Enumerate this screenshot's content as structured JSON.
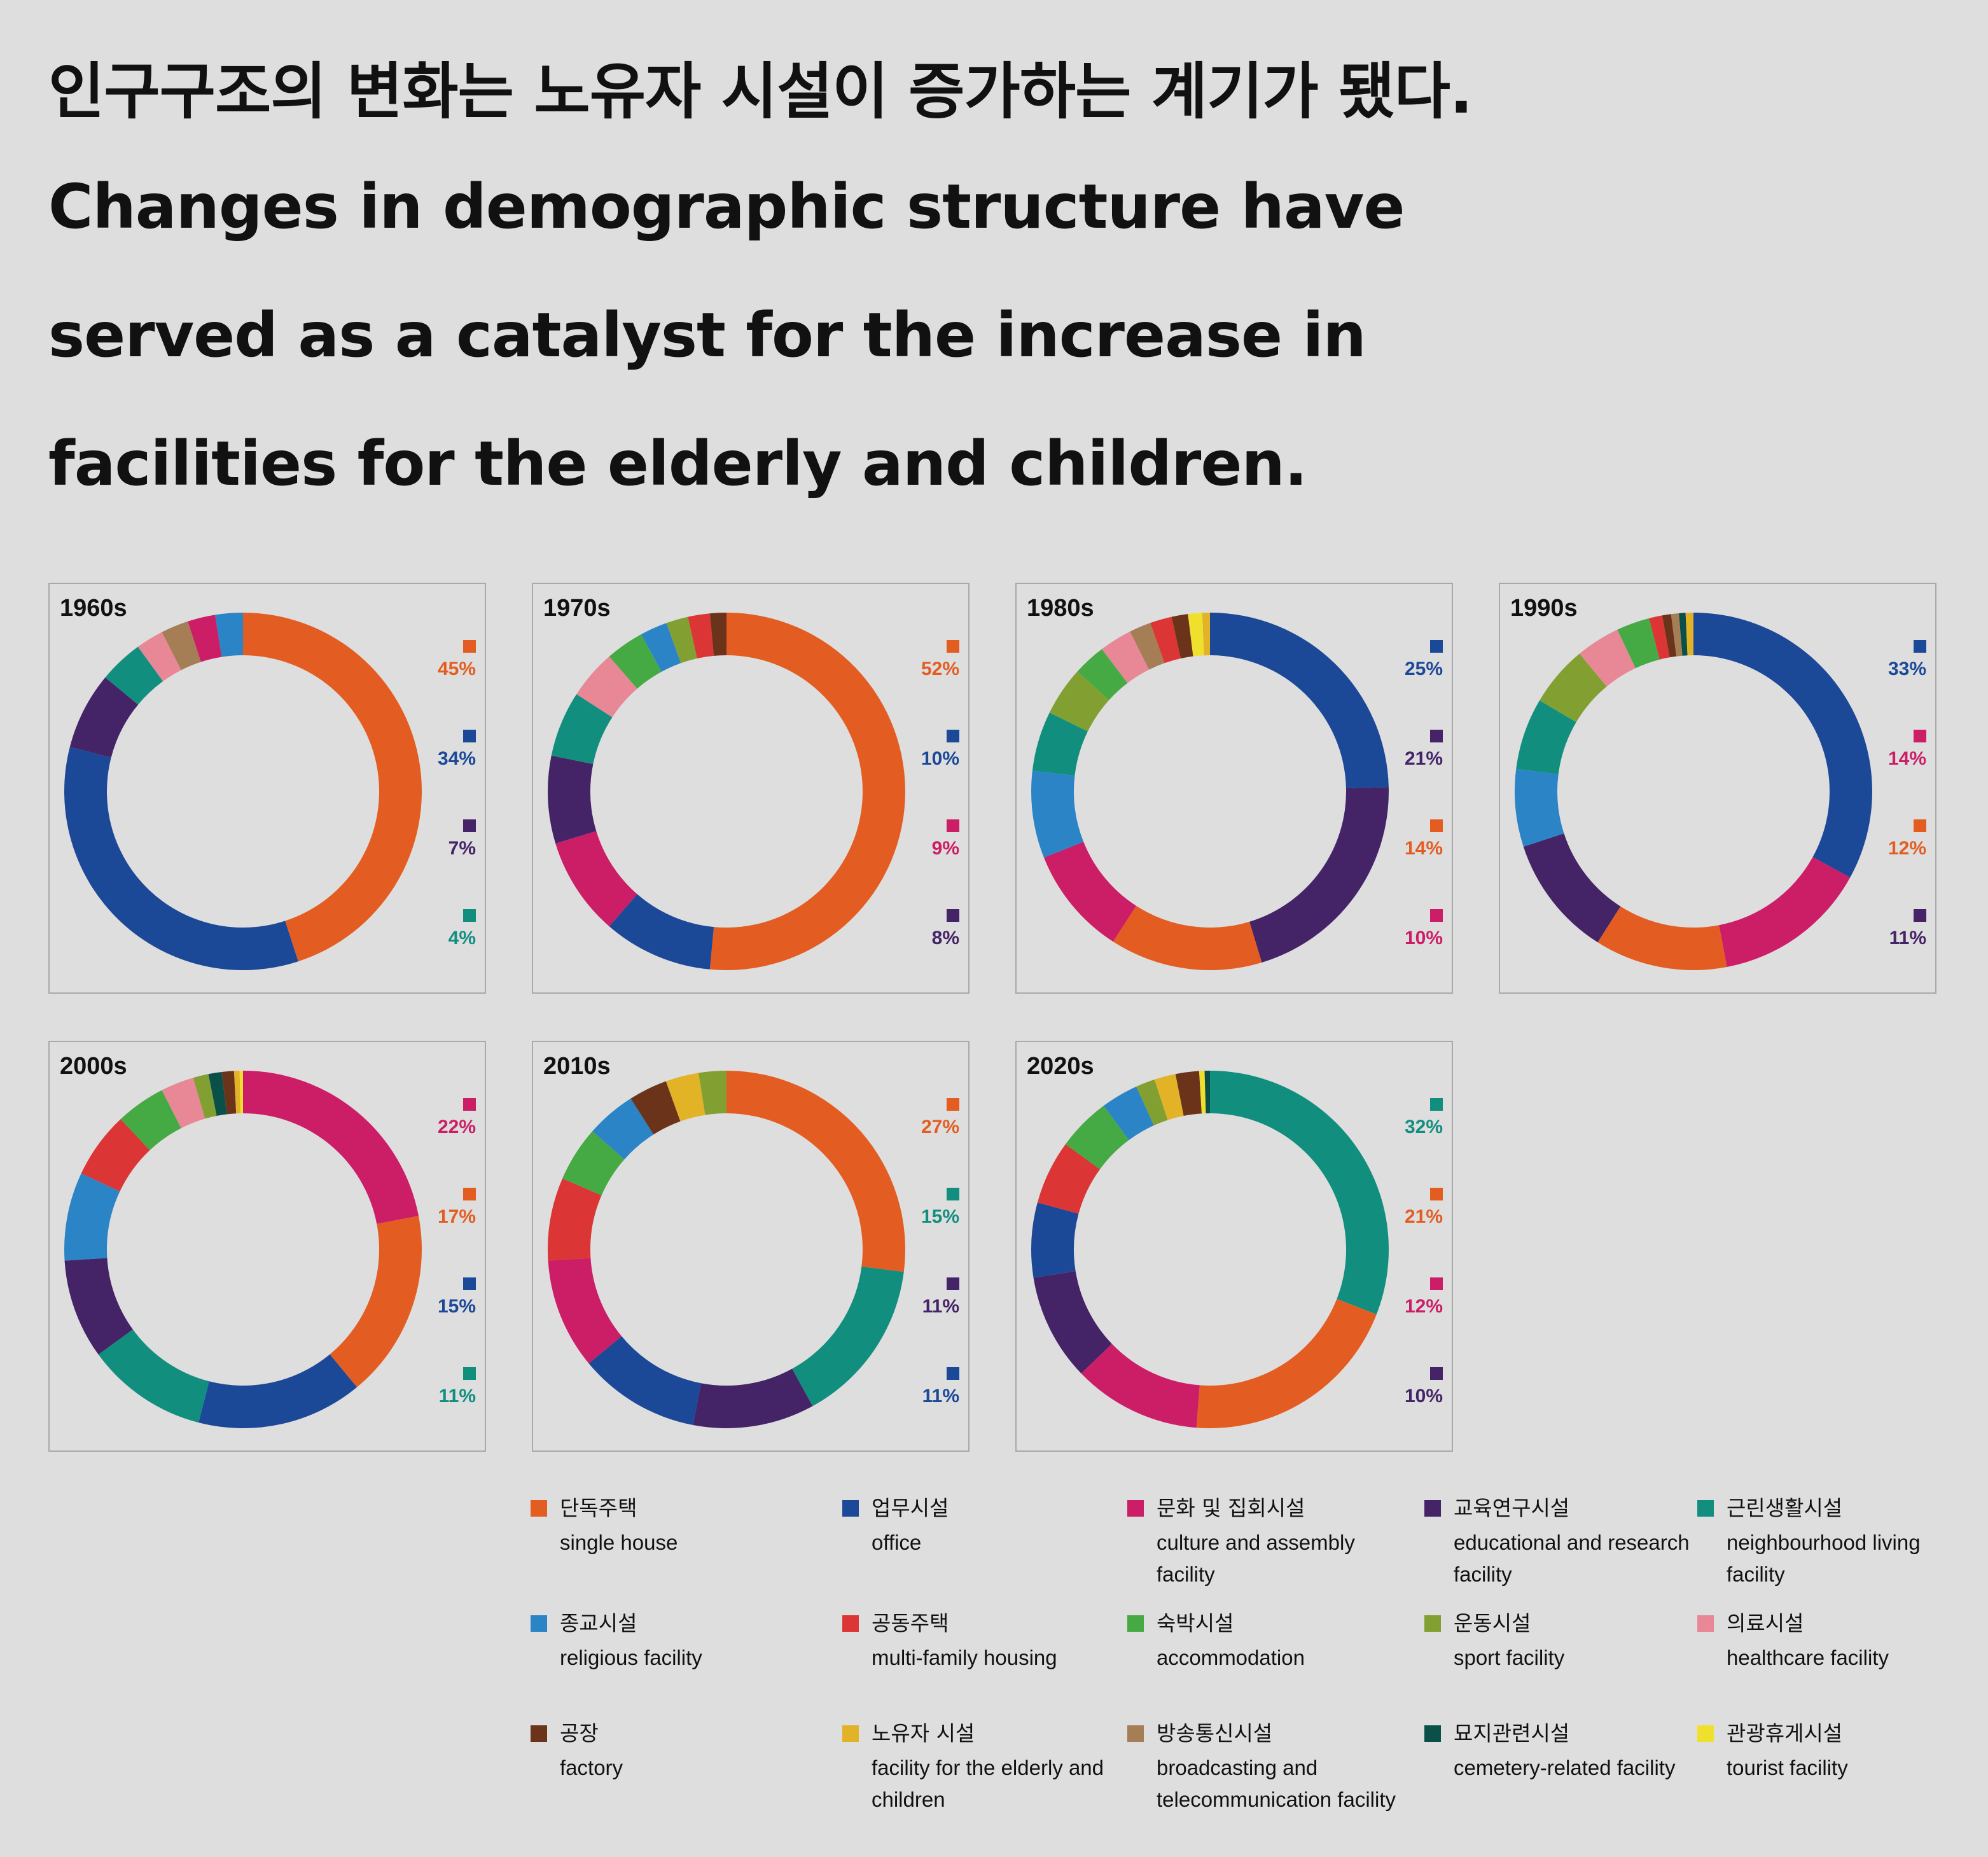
{
  "headline": {
    "korean": "인구구조의 변화는 노유자 시설이 증가하는 계기가 됐다.",
    "english_lines": [
      "Changes in demographic structure have",
      "served as a catalyst for the increase in",
      "facilities for the elderly and children."
    ]
  },
  "legend": [
    {
      "key": "single",
      "ko": "단독주택",
      "en": "single house",
      "color": "#e35d22"
    },
    {
      "key": "office",
      "ko": "업무시설",
      "en": "office",
      "color": "#1c4898"
    },
    {
      "key": "culture",
      "ko": "문화 및 집회시설",
      "en": "culture and assembly facility",
      "color": "#cc1d67"
    },
    {
      "key": "edu",
      "ko": "교육연구시설",
      "en": "educational and research facility",
      "color": "#442467"
    },
    {
      "key": "neigh",
      "ko": "근린생활시설",
      "en": "neighbourhood living facility",
      "color": "#128e7f"
    },
    {
      "key": "religious",
      "ko": "종교시설",
      "en": "religious facility",
      "color": "#2a84c6"
    },
    {
      "key": "multi",
      "ko": "공동주택",
      "en": "multi-family housing",
      "color": "#dc3535"
    },
    {
      "key": "accom",
      "ko": "숙박시설",
      "en": "accommodation",
      "color": "#46aa44"
    },
    {
      "key": "sport",
      "ko": "운동시설",
      "en": "sport facility",
      "color": "#82a032"
    },
    {
      "key": "health",
      "ko": "의료시설",
      "en": "healthcare facility",
      "color": "#e88896"
    },
    {
      "key": "factory",
      "ko": "공장",
      "en": "factory",
      "color": "#6b341a"
    },
    {
      "key": "elderly",
      "ko": "노유자 시설",
      "en": "facility for the elderly and children",
      "color": "#e2b227"
    },
    {
      "key": "broadcast",
      "ko": "방송통신시설",
      "en": "broadcasting and telecommunication facility",
      "color": "#a67e56"
    },
    {
      "key": "cemetery",
      "ko": "묘지관련시설",
      "en": "cemetery-related facility",
      "color": "#0a5048"
    },
    {
      "key": "tourist",
      "ko": "관광휴게시설",
      "en": "tourist facility",
      "color": "#f0e02e"
    }
  ],
  "chart_data": [
    {
      "type": "pie",
      "title": "1960s",
      "slices": [
        {
          "cat": "single",
          "value": 45
        },
        {
          "cat": "office",
          "value": 34
        },
        {
          "cat": "edu",
          "value": 7
        },
        {
          "cat": "neigh",
          "value": 4
        },
        {
          "cat": "health",
          "value": 2.5
        },
        {
          "cat": "broadcast",
          "value": 2.5
        },
        {
          "cat": "culture",
          "value": 2.5
        },
        {
          "cat": "religious",
          "value": 2.5
        }
      ],
      "labels": [
        {
          "cat": "single",
          "text": "45%"
        },
        {
          "cat": "office",
          "text": "34%"
        },
        {
          "cat": "edu",
          "text": "7%"
        },
        {
          "cat": "neigh",
          "text": "4%"
        }
      ]
    },
    {
      "type": "pie",
      "title": "1970s",
      "slices": [
        {
          "cat": "single",
          "value": 52
        },
        {
          "cat": "office",
          "value": 10
        },
        {
          "cat": "culture",
          "value": 9
        },
        {
          "cat": "edu",
          "value": 8
        },
        {
          "cat": "neigh",
          "value": 6
        },
        {
          "cat": "health",
          "value": 4.5
        },
        {
          "cat": "accom",
          "value": 3.5
        },
        {
          "cat": "religious",
          "value": 2.5
        },
        {
          "cat": "sport",
          "value": 2
        },
        {
          "cat": "multi",
          "value": 2
        },
        {
          "cat": "factory",
          "value": 1.5
        }
      ],
      "labels": [
        {
          "cat": "single",
          "text": "52%"
        },
        {
          "cat": "office",
          "text": "10%"
        },
        {
          "cat": "culture",
          "text": "9%"
        },
        {
          "cat": "edu",
          "text": "8%"
        }
      ]
    },
    {
      "type": "pie",
      "title": "1980s",
      "slices": [
        {
          "cat": "office",
          "value": 25
        },
        {
          "cat": "edu",
          "value": 21
        },
        {
          "cat": "single",
          "value": 14
        },
        {
          "cat": "culture",
          "value": 10
        },
        {
          "cat": "religious",
          "value": 8
        },
        {
          "cat": "neigh",
          "value": 5.5
        },
        {
          "cat": "sport",
          "value": 4.5
        },
        {
          "cat": "accom",
          "value": 3
        },
        {
          "cat": "health",
          "value": 3
        },
        {
          "cat": "broadcast",
          "value": 2
        },
        {
          "cat": "multi",
          "value": 2
        },
        {
          "cat": "factory",
          "value": 1.5
        },
        {
          "cat": "tourist",
          "value": 1.3
        },
        {
          "cat": "elderly",
          "value": 0.7
        }
      ],
      "labels": [
        {
          "cat": "office",
          "text": "25%"
        },
        {
          "cat": "edu",
          "text": "21%"
        },
        {
          "cat": "single",
          "text": "14%"
        },
        {
          "cat": "culture",
          "text": "10%"
        }
      ]
    },
    {
      "type": "pie",
      "title": "1990s",
      "slices": [
        {
          "cat": "office",
          "value": 33
        },
        {
          "cat": "culture",
          "value": 14
        },
        {
          "cat": "single",
          "value": 12
        },
        {
          "cat": "edu",
          "value": 11
        },
        {
          "cat": "religious",
          "value": 7
        },
        {
          "cat": "neigh",
          "value": 6.5
        },
        {
          "cat": "sport",
          "value": 5.5
        },
        {
          "cat": "health",
          "value": 4
        },
        {
          "cat": "accom",
          "value": 3
        },
        {
          "cat": "multi",
          "value": 1.2
        },
        {
          "cat": "factory",
          "value": 0.8
        },
        {
          "cat": "broadcast",
          "value": 0.7
        },
        {
          "cat": "cemetery",
          "value": 0.6
        },
        {
          "cat": "elderly",
          "value": 0.7
        }
      ],
      "labels": [
        {
          "cat": "office",
          "text": "33%"
        },
        {
          "cat": "culture",
          "text": "14%"
        },
        {
          "cat": "single",
          "text": "12%"
        },
        {
          "cat": "edu",
          "text": "11%"
        }
      ]
    },
    {
      "type": "pie",
      "title": "2000s",
      "slices": [
        {
          "cat": "culture",
          "value": 22
        },
        {
          "cat": "single",
          "value": 17
        },
        {
          "cat": "office",
          "value": 15
        },
        {
          "cat": "neigh",
          "value": 11
        },
        {
          "cat": "edu",
          "value": 9
        },
        {
          "cat": "religious",
          "value": 8
        },
        {
          "cat": "multi",
          "value": 6
        },
        {
          "cat": "accom",
          "value": 4.5
        },
        {
          "cat": "health",
          "value": 3
        },
        {
          "cat": "sport",
          "value": 1.4
        },
        {
          "cat": "cemetery",
          "value": 1.2
        },
        {
          "cat": "factory",
          "value": 1.1
        },
        {
          "cat": "elderly",
          "value": 0.5
        },
        {
          "cat": "tourist",
          "value": 0.3
        }
      ],
      "labels": [
        {
          "cat": "culture",
          "text": "22%"
        },
        {
          "cat": "single",
          "text": "17%"
        },
        {
          "cat": "office",
          "text": "15%"
        },
        {
          "cat": "neigh",
          "text": "11%"
        }
      ]
    },
    {
      "type": "pie",
      "title": "2010s",
      "slices": [
        {
          "cat": "single",
          "value": 27
        },
        {
          "cat": "neigh",
          "value": 15
        },
        {
          "cat": "edu",
          "value": 11
        },
        {
          "cat": "office",
          "value": 11
        },
        {
          "cat": "culture",
          "value": 10
        },
        {
          "cat": "multi",
          "value": 7.5
        },
        {
          "cat": "accom",
          "value": 5
        },
        {
          "cat": "religious",
          "value": 4.5
        },
        {
          "cat": "factory",
          "value": 3.5
        },
        {
          "cat": "elderly",
          "value": 3
        },
        {
          "cat": "sport",
          "value": 2.5
        }
      ],
      "labels": [
        {
          "cat": "single",
          "text": "27%"
        },
        {
          "cat": "neigh",
          "text": "15%"
        },
        {
          "cat": "edu",
          "text": "11%"
        },
        {
          "cat": "office",
          "text": "11%"
        }
      ]
    },
    {
      "type": "pie",
      "title": "2020s",
      "slices": [
        {
          "cat": "neigh",
          "value": 32
        },
        {
          "cat": "single",
          "value": 21
        },
        {
          "cat": "culture",
          "value": 12
        },
        {
          "cat": "edu",
          "value": 10
        },
        {
          "cat": "office",
          "value": 7
        },
        {
          "cat": "multi",
          "value": 6
        },
        {
          "cat": "accom",
          "value": 5
        },
        {
          "cat": "religious",
          "value": 3.5
        },
        {
          "cat": "sport",
          "value": 1.8
        },
        {
          "cat": "elderly",
          "value": 2
        },
        {
          "cat": "factory",
          "value": 2.2
        },
        {
          "cat": "tourist",
          "value": 0.5
        },
        {
          "cat": "cemetery",
          "value": 0.5
        }
      ],
      "labels": [
        {
          "cat": "neigh",
          "text": "32%"
        },
        {
          "cat": "single",
          "text": "21%"
        },
        {
          "cat": "culture",
          "text": "12%"
        },
        {
          "cat": "edu",
          "text": "10%"
        }
      ]
    }
  ]
}
